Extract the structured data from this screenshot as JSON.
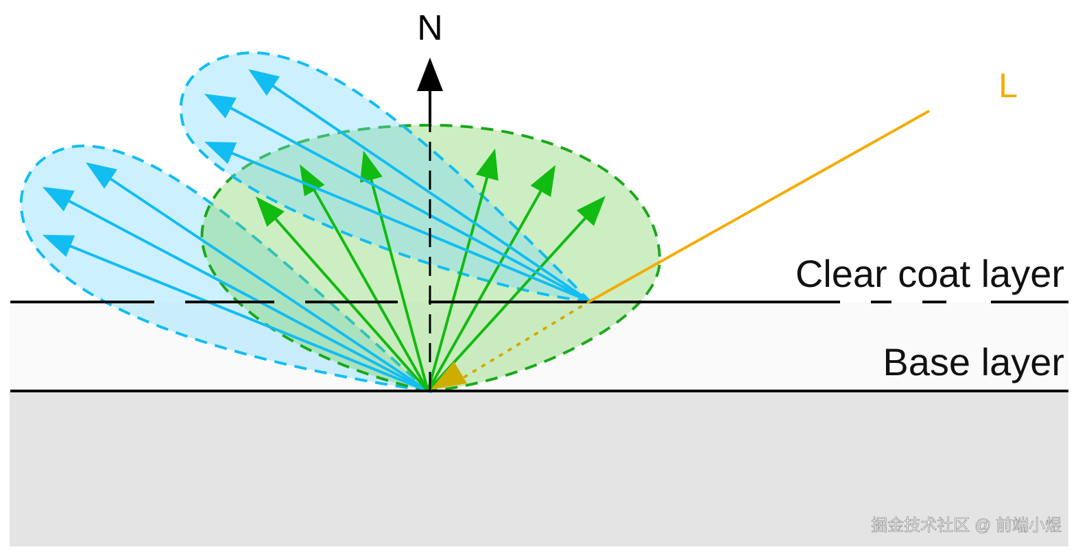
{
  "labels": {
    "normal": "N",
    "light": "L",
    "clear_coat": "Clear coat layer",
    "base": "Base layer"
  },
  "watermark": "掘金技术社区 @ 前端小煜",
  "colors": {
    "base_lobe": "#1aa81a",
    "clear_coat_lobe": "#12bdf2",
    "light": "#f5ac00",
    "normal": "#000000"
  }
}
